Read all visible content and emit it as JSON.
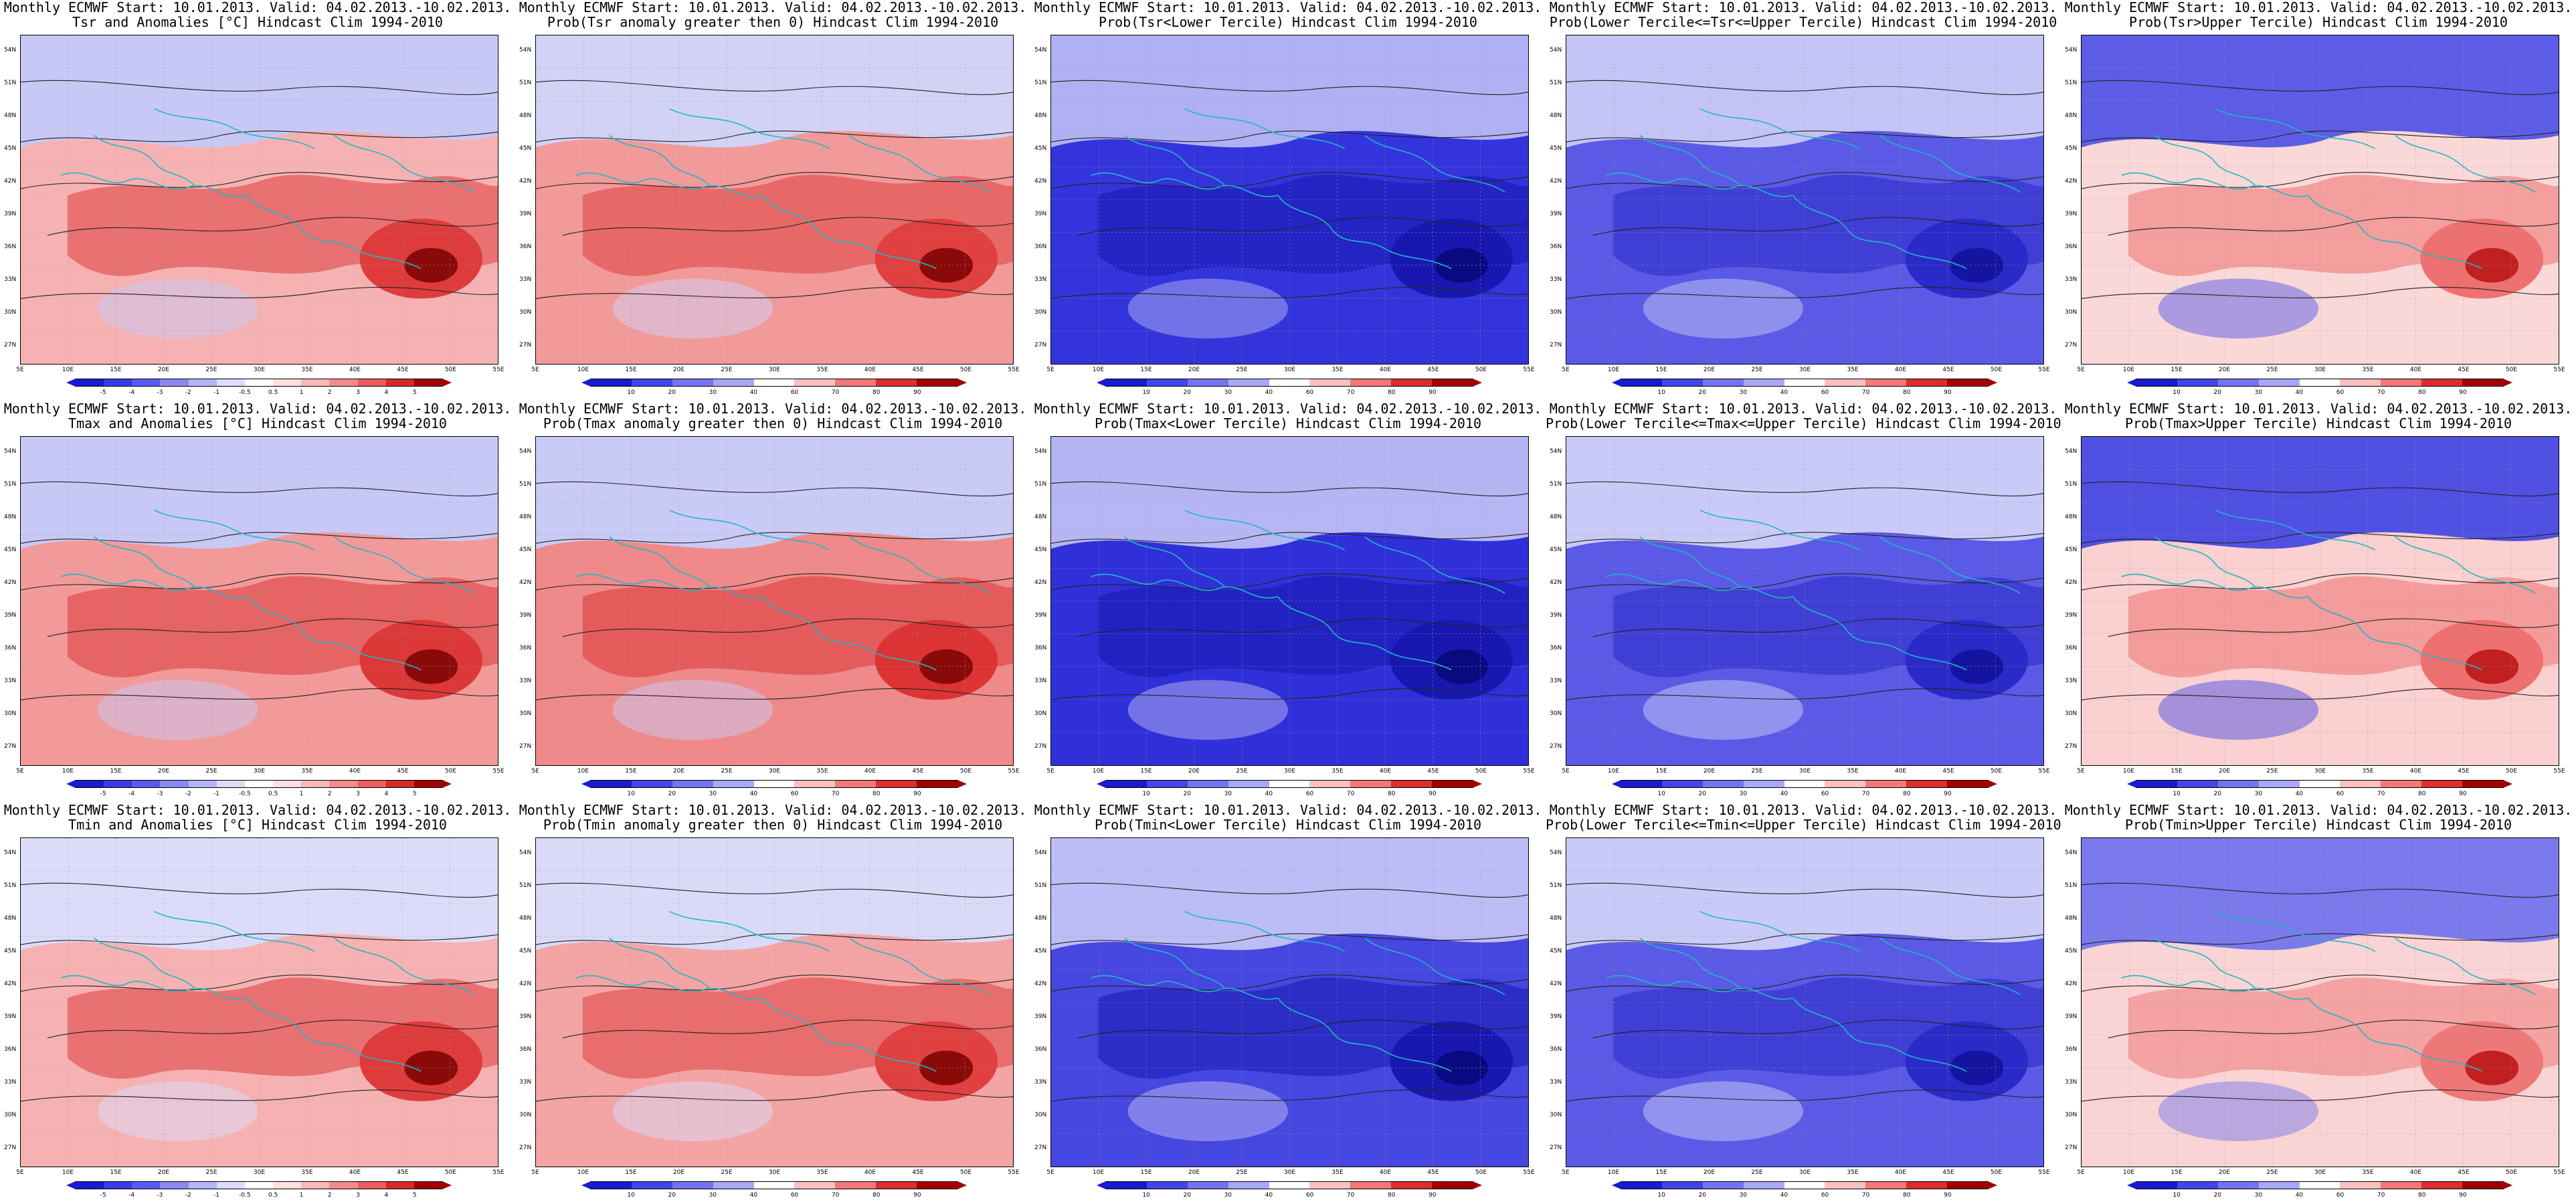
{
  "header": "Monthly ECMWF Start: 10.01.2013. Valid: 04.02.2013.-10.02.2013.",
  "lat_labels": [
    "54N",
    "51N",
    "48N",
    "45N",
    "42N",
    "39N",
    "36N",
    "33N",
    "30N",
    "27N"
  ],
  "lon_labels": [
    "5E",
    "10E",
    "15E",
    "20E",
    "25E",
    "30E",
    "35E",
    "40E",
    "45E",
    "50E",
    "55E"
  ],
  "colorbars": {
    "anomaly": {
      "ticks": [
        "-5",
        "-4",
        "-3",
        "-2",
        "-1",
        "-0.5",
        "0.5",
        "1",
        "2",
        "3",
        "4",
        "5"
      ],
      "colors": [
        "#1a1ad0",
        "#3a3ae6",
        "#5a5af0",
        "#8a8af6",
        "#b4b4fa",
        "#dcdcfd",
        "#ffffff",
        "#fde0e0",
        "#fbb8b8",
        "#f58a8a",
        "#ee5c5c",
        "#d42a2a",
        "#a00000"
      ]
    },
    "probability": {
      "ticks": [
        "10",
        "20",
        "30",
        "40",
        "60",
        "70",
        "80",
        "90"
      ],
      "colors": [
        "#1a1ad0",
        "#4444e8",
        "#7474f2",
        "#a8a8f8",
        "#ffffff",
        "#fbc0c0",
        "#f37878",
        "#dc2e2e",
        "#a00000"
      ]
    }
  },
  "panels": [
    {
      "title": "Tsr and Anomalies [°C] Hindcast Clim 1994-2010",
      "bar": "anomaly",
      "base": "#f6b2b2",
      "north": "#c8c8f6",
      "hot": "#de3c3c",
      "spot": "#8a0a0a"
    },
    {
      "title": "Prob(Tsr anomaly greater then 0) Hindcast Clim 1994-2010",
      "bar": "probability",
      "base": "#f29a9a",
      "north": "#d2d2f6",
      "hot": "#e04040",
      "spot": "#8a0a0a"
    },
    {
      "title": "Prob(Tsr<Lower Tercile) Hindcast Clim 1994-2010",
      "bar": "probability",
      "base": "#3434dc",
      "north": "#b0b0f4",
      "hot": "#1818b0",
      "spot": "#0a0a80"
    },
    {
      "title": "Prob(Lower Tercile<=Tsr<=Upper Tercile) Hindcast Clim 1994-2010",
      "bar": "probability",
      "base": "#5a5ae6",
      "north": "#c4c4f6",
      "hot": "#2a2ac8",
      "spot": "#1414a0"
    },
    {
      "title": "Prob(Tsr>Upper Tercile) Hindcast Clim 1994-2010",
      "bar": "probability",
      "base": "#fbd8d8",
      "north": "#5c5ce6",
      "hot": "#ee7070",
      "spot": "#c02020"
    },
    {
      "title": "Tmax and Anomalies [°C] Hindcast Clim 1994-2010",
      "bar": "anomaly",
      "base": "#f29a9a",
      "north": "#c8c8f6",
      "hot": "#dc3838",
      "spot": "#8a0a0a"
    },
    {
      "title": "Prob(Tmax anomaly greater then 0) Hindcast Clim 1994-2010",
      "bar": "probability",
      "base": "#f08a8a",
      "north": "#cacaf6",
      "hot": "#dc3434",
      "spot": "#8a0a0a"
    },
    {
      "title": "Prob(Tmax<Lower Tercile) Hindcast Clim 1994-2010",
      "bar": "probability",
      "base": "#3030da",
      "north": "#b6b6f4",
      "hot": "#1818b0",
      "spot": "#0a0a80"
    },
    {
      "title": "Prob(Lower Tercile<=Tmax<=Upper Tercile) Hindcast Clim 1994-2010",
      "bar": "probability",
      "base": "#5a5ae6",
      "north": "#cacaf8",
      "hot": "#2a2ac8",
      "spot": "#1414a0"
    },
    {
      "title": "Prob(Tmax>Upper Tercile) Hindcast Clim 1994-2010",
      "bar": "probability",
      "base": "#fad0d0",
      "north": "#5050e2",
      "hot": "#ee7070",
      "spot": "#c02020"
    },
    {
      "title": "Tmin and Anomalies [°C] Hindcast Clim 1994-2010",
      "bar": "anomaly",
      "base": "#f6b2b2",
      "north": "#dcdcfa",
      "hot": "#de3c3c",
      "spot": "#8a0a0a"
    },
    {
      "title": "Prob(Tmin anomaly greater then 0) Hindcast Clim 1994-2010",
      "bar": "probability",
      "base": "#f4a4a4",
      "north": "#dadaf8",
      "hot": "#e04040",
      "spot": "#8a0a0a"
    },
    {
      "title": "Prob(Tmin<Lower Tercile) Hindcast Clim 1994-2010",
      "bar": "probability",
      "base": "#4646e0",
      "north": "#bcbcf6",
      "hot": "#1818b0",
      "spot": "#0a0a80"
    },
    {
      "title": "Prob(Lower Tercile<=Tmin<=Upper Tercile) Hindcast Clim 1994-2010",
      "bar": "probability",
      "base": "#5a5ae6",
      "north": "#cacaf8",
      "hot": "#2a2ac8",
      "spot": "#1414a0"
    },
    {
      "title": "Prob(Tmin>Upper Tercile) Hindcast Clim 1994-2010",
      "bar": "probability",
      "base": "#fad4d4",
      "north": "#7a7aec",
      "hot": "#ee7878",
      "spot": "#c02020"
    }
  ]
}
